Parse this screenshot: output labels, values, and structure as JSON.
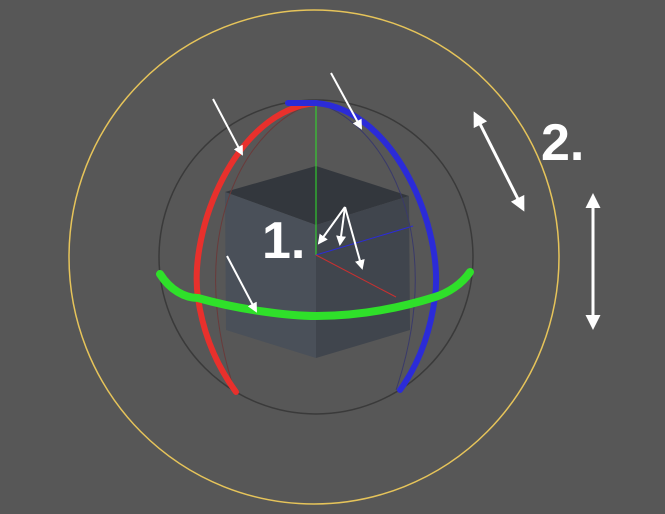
{
  "viewport": {
    "background": "#575757",
    "callouts": {
      "axes": "1.",
      "trackball": "2."
    },
    "colors": {
      "x_axis": "#e8302c",
      "y_axis": "#2fe02a",
      "z_axis": "#2b2bd8",
      "trackball_ring": "#e6c45a",
      "inner_ring": "#3a3a3a",
      "cube_front": "#4a5059",
      "cube_side": "#40454d",
      "cube_top": "#33373d",
      "arrow": "#ffffff"
    },
    "icons": [
      "rotate-gizmo",
      "cube-object",
      "double-arrow-icon"
    ]
  }
}
